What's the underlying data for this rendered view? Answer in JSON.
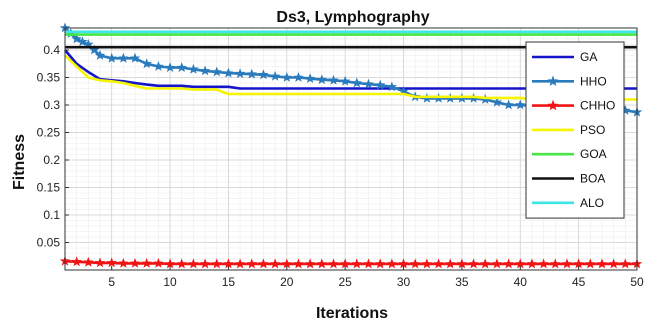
{
  "chart_data": {
    "type": "line",
    "title": "Ds3, Lymphography",
    "xlabel": "Iterations",
    "ylabel": "Fitness",
    "xlim": [
      1,
      50
    ],
    "ylim": [
      0,
      0.44
    ],
    "xticks": [
      5,
      10,
      15,
      20,
      25,
      30,
      35,
      40,
      45,
      50
    ],
    "yticks": [
      0.05,
      0.1,
      0.15,
      0.2,
      0.25,
      0.3,
      0.35,
      0.4
    ],
    "grid": true,
    "legend_position": "top-right",
    "series": [
      {
        "name": "GA",
        "color": "#1414c8",
        "marker": "none",
        "x": [
          1,
          2,
          3,
          4,
          5,
          6,
          7,
          8,
          9,
          10,
          11,
          12,
          13,
          14,
          15,
          16,
          17,
          18,
          19,
          20,
          21,
          22,
          23,
          24,
          25,
          26,
          27,
          28,
          29,
          30,
          31,
          32,
          33,
          34,
          35,
          36,
          37,
          38,
          39,
          40,
          41,
          42,
          43,
          44,
          45,
          46,
          47,
          48,
          49,
          50
        ],
        "values": [
          0.4,
          0.375,
          0.36,
          0.347,
          0.345,
          0.343,
          0.34,
          0.337,
          0.335,
          0.335,
          0.335,
          0.333,
          0.333,
          0.333,
          0.333,
          0.33,
          0.33,
          0.33,
          0.33,
          0.33,
          0.33,
          0.33,
          0.33,
          0.33,
          0.33,
          0.33,
          0.33,
          0.33,
          0.33,
          0.33,
          0.33,
          0.33,
          0.33,
          0.33,
          0.33,
          0.33,
          0.33,
          0.33,
          0.33,
          0.33,
          0.33,
          0.33,
          0.33,
          0.33,
          0.33,
          0.33,
          0.33,
          0.33,
          0.33,
          0.33
        ]
      },
      {
        "name": "HHO",
        "color": "#2a7bbd",
        "marker": "star",
        "x": [
          1,
          1.5,
          2,
          2.5,
          3,
          3.5,
          4,
          5,
          6,
          7,
          8,
          9,
          10,
          11,
          12,
          13,
          14,
          15,
          16,
          17,
          18,
          19,
          20,
          21,
          22,
          23,
          24,
          25,
          26,
          27,
          28,
          29,
          30,
          31,
          32,
          33,
          34,
          35,
          36,
          37,
          38,
          39,
          40,
          41,
          42,
          43,
          44,
          45,
          46,
          47,
          48,
          49,
          50
        ],
        "values": [
          0.44,
          0.43,
          0.42,
          0.415,
          0.41,
          0.4,
          0.39,
          0.385,
          0.385,
          0.385,
          0.375,
          0.37,
          0.368,
          0.368,
          0.365,
          0.362,
          0.36,
          0.358,
          0.357,
          0.356,
          0.355,
          0.352,
          0.35,
          0.35,
          0.348,
          0.346,
          0.345,
          0.343,
          0.34,
          0.338,
          0.336,
          0.333,
          0.325,
          0.315,
          0.312,
          0.312,
          0.312,
          0.312,
          0.312,
          0.31,
          0.305,
          0.3,
          0.3,
          0.298,
          0.298,
          0.298,
          0.298,
          0.298,
          0.298,
          0.298,
          0.298,
          0.29,
          0.287
        ]
      },
      {
        "name": "CHHO",
        "color": "#f01414",
        "marker": "star",
        "x": [
          1,
          2,
          3,
          4,
          5,
          6,
          7,
          8,
          9,
          10,
          11,
          12,
          13,
          14,
          15,
          16,
          17,
          18,
          19,
          20,
          21,
          22,
          23,
          24,
          25,
          26,
          27,
          28,
          29,
          30,
          31,
          32,
          33,
          34,
          35,
          36,
          37,
          38,
          39,
          40,
          41,
          42,
          43,
          44,
          45,
          46,
          47,
          48,
          49,
          50
        ],
        "values": [
          0.016,
          0.015,
          0.014,
          0.013,
          0.013,
          0.012,
          0.012,
          0.012,
          0.012,
          0.011,
          0.011,
          0.011,
          0.011,
          0.011,
          0.011,
          0.011,
          0.011,
          0.011,
          0.011,
          0.011,
          0.011,
          0.011,
          0.011,
          0.011,
          0.011,
          0.011,
          0.011,
          0.011,
          0.011,
          0.011,
          0.011,
          0.011,
          0.011,
          0.011,
          0.011,
          0.011,
          0.011,
          0.011,
          0.011,
          0.011,
          0.011,
          0.011,
          0.011,
          0.011,
          0.011,
          0.011,
          0.011,
          0.011,
          0.011,
          0.011
        ]
      },
      {
        "name": "PSO",
        "color": "#f5f500",
        "marker": "none",
        "x": [
          1,
          2,
          3,
          4,
          5,
          6,
          7,
          8,
          9,
          10,
          11,
          12,
          13,
          14,
          15,
          16,
          17,
          18,
          19,
          20,
          21,
          22,
          23,
          24,
          25,
          26,
          27,
          28,
          29,
          30,
          31,
          32,
          33,
          34,
          35,
          36,
          37,
          38,
          39,
          40,
          41,
          42,
          43,
          44,
          45,
          46,
          47,
          48,
          49,
          50
        ],
        "values": [
          0.39,
          0.37,
          0.35,
          0.345,
          0.343,
          0.34,
          0.335,
          0.33,
          0.33,
          0.33,
          0.33,
          0.328,
          0.328,
          0.328,
          0.32,
          0.32,
          0.32,
          0.32,
          0.32,
          0.32,
          0.32,
          0.32,
          0.32,
          0.32,
          0.32,
          0.32,
          0.32,
          0.32,
          0.32,
          0.32,
          0.315,
          0.315,
          0.315,
          0.315,
          0.315,
          0.315,
          0.313,
          0.313,
          0.313,
          0.313,
          0.31,
          0.31,
          0.31,
          0.31,
          0.31,
          0.31,
          0.31,
          0.31,
          0.31,
          0.31
        ]
      },
      {
        "name": "GOA",
        "color": "#46e646",
        "marker": "none",
        "x": [
          1,
          50
        ],
        "values": [
          0.428,
          0.428
        ]
      },
      {
        "name": "BOA",
        "color": "#111111",
        "marker": "none",
        "x": [
          1,
          50
        ],
        "values": [
          0.405,
          0.405
        ]
      },
      {
        "name": "ALO",
        "color": "#3ce6e6",
        "marker": "none",
        "x": [
          1,
          50
        ],
        "values": [
          0.433,
          0.433
        ]
      }
    ]
  }
}
